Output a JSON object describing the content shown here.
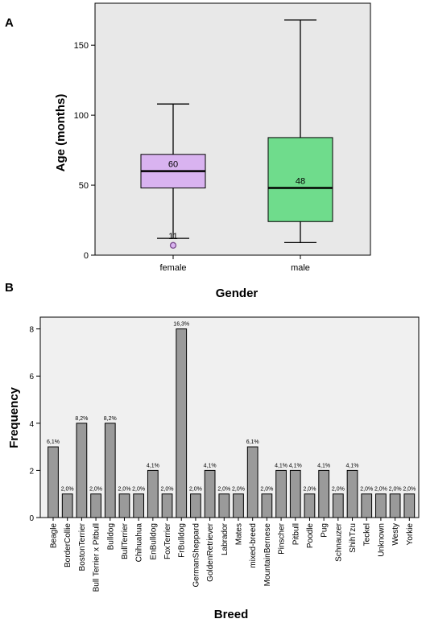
{
  "panels": {
    "a_label": "A",
    "b_label": "B"
  },
  "chart_data": [
    {
      "type": "boxplot",
      "xlabel": "Gender",
      "ylabel": "Age (months)",
      "ylim": [
        0,
        180
      ],
      "yticks": [
        0,
        50,
        100,
        150
      ],
      "grid": false,
      "background": "#e8e8e8",
      "categories": [
        "female",
        "male"
      ],
      "boxes": [
        {
          "name": "female",
          "min": 12,
          "q1": 48,
          "median": 60,
          "q3": 72,
          "max": 108,
          "median_label": "60",
          "outliers": [
            {
              "value": 7,
              "label": "11"
            }
          ],
          "color": "#d9b3f0"
        },
        {
          "name": "male",
          "min": 9,
          "q1": 24,
          "median": 48,
          "q3": 84,
          "max": 168,
          "median_label": "48",
          "outliers": [],
          "color": "#6fdc8c"
        }
      ]
    },
    {
      "type": "bar",
      "xlabel": "Breed",
      "ylabel": "Frequency",
      "ylim": [
        0,
        8.5
      ],
      "yticks": [
        0,
        2,
        4,
        6,
        8
      ],
      "grid": false,
      "background": "#f0f0f0",
      "bar_color": "#9a9a9a",
      "categories": [
        "Beagle",
        "BorderCollie",
        "BostonTerrier",
        "Bull Terrier x Pitbull",
        "Bulldog",
        "BullTerrier",
        "Chihuahua",
        "EnBulldog",
        "FoxTerrier",
        "FrBulldog",
        "GermanSheppard",
        "GoldenRetriever",
        "Labrador",
        "Mates",
        "mixed-breed",
        "MountainBernese",
        "Pinscher",
        "Pitbull",
        "Poodle",
        "Pug",
        "Schnauzer",
        "ShihTzu",
        "Teckel",
        "Unknown",
        "Westy",
        "Yorkie"
      ],
      "values": [
        3,
        1,
        4,
        1,
        4,
        1,
        1,
        2,
        1,
        8,
        1,
        2,
        1,
        1,
        3,
        1,
        2,
        2,
        1,
        2,
        1,
        2,
        1,
        1,
        1,
        1
      ],
      "data_labels": [
        "6,1%",
        "2,0%",
        "8,2%",
        "2,0%",
        "8,2%",
        "2,0%",
        "2,0%",
        "4,1%",
        "2,0%",
        "16,3%",
        "2,0%",
        "4,1%",
        "2,0%",
        "2,0%",
        "6,1%",
        "2,0%",
        "4,1%",
        "4,1%",
        "2,0%",
        "4,1%",
        "2,0%",
        "4,1%",
        "2,0%",
        "2,0%",
        "2,0%",
        "2,0%"
      ]
    }
  ]
}
